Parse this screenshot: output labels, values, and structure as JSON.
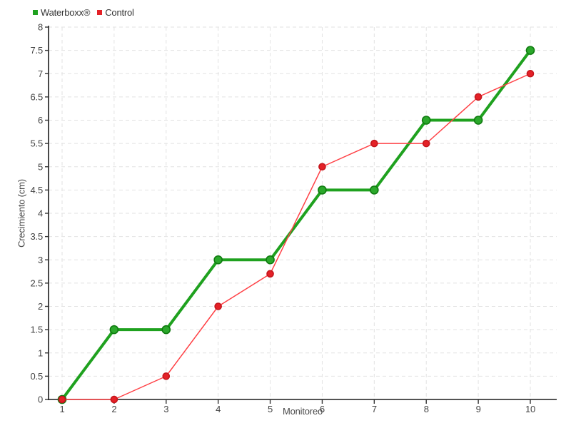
{
  "legend": {
    "items": [
      {
        "label": "Waterboxx®",
        "color": "#1fa11f"
      },
      {
        "label": "Control",
        "color": "#e42127"
      }
    ]
  },
  "chart_data": {
    "type": "line",
    "x": [
      1,
      2,
      3,
      4,
      5,
      6,
      7,
      8,
      9,
      10
    ],
    "series": [
      {
        "name": "Waterboxx®",
        "values": [
          0,
          1.5,
          1.5,
          3,
          3,
          4.5,
          4.5,
          6,
          6,
          7.5
        ],
        "line_color": "#1fa11f",
        "line_width": 4,
        "marker_fill": "#2ba82b",
        "marker_stroke": "#0f7a0f",
        "marker_radius": 5.5
      },
      {
        "name": "Control",
        "values": [
          0,
          0,
          0.5,
          2,
          2.7,
          5,
          5.5,
          5.5,
          6.5,
          7
        ],
        "line_color": "#ff4045",
        "line_width": 1.5,
        "marker_fill": "#e42127",
        "marker_stroke": "#c4151c",
        "marker_radius": 4.5
      }
    ],
    "title": "",
    "xlabel": "Monitoreo",
    "ylabel": "Crecimiento (cm)",
    "ylim": [
      0,
      8
    ],
    "y_tick_step": 0.5,
    "grid": true,
    "legend_position": "top-left",
    "style": {
      "grid_color": "#e2e2e2",
      "axis_color": "#1a1a1a",
      "tick_color": "#333333",
      "tick_label_color": "#444444",
      "background": "#ffffff"
    }
  }
}
